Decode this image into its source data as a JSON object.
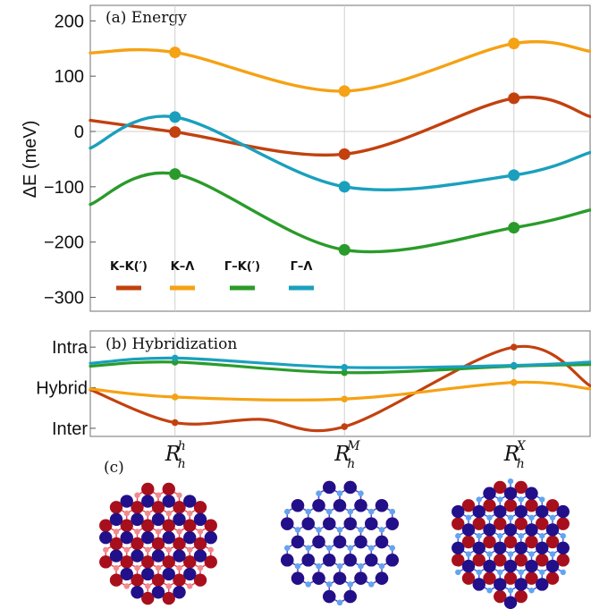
{
  "colors": {
    "K-K'": "#c2410f",
    "K-Lambda": "#f5a214",
    "Gamma-K'": "#2a9b2a",
    "Gamma-Lambda": "#1aa0bd",
    "red_atom": "#a80f1c",
    "blue_atom": "#21108a",
    "red_bond": "#e8414d",
    "blue_bond": "#3b57d9",
    "red_small": "#f08a8f",
    "blue_small": "#62a4f0"
  },
  "stacking_labels": [
    {
      "main": "R",
      "sub": "h",
      "sup": "h"
    },
    {
      "main": "R",
      "sub": "h",
      "sup": "M"
    },
    {
      "main": "R",
      "sub": "h",
      "sup": "X"
    }
  ],
  "panel_c_label": "(c)",
  "chart_data": [
    {
      "type": "line",
      "title": "(a) Energy",
      "ylabel": "ΔE (meV)",
      "ylim": [
        -325,
        228
      ],
      "yticks": [
        "200",
        "100",
        "0",
        "−100",
        "−200",
        "−300"
      ],
      "ytick_values": [
        200,
        100,
        0,
        -100,
        -200,
        -300
      ],
      "xlim": [
        -0.5,
        2.45
      ],
      "x_categories": [
        "R_h^h",
        "R_h^M",
        "R_h^X"
      ],
      "legend": {
        "placement": "lower-left",
        "entries": [
          "K–K(′)",
          "K–Λ",
          "Γ–K(′)",
          "Γ–Λ"
        ]
      },
      "series": [
        {
          "name": "K–K(′)",
          "color_key": "K-K'",
          "x": [
            -0.5,
            0,
            1,
            2,
            2.45
          ],
          "y": [
            20,
            -1,
            -41,
            60,
            27
          ]
        },
        {
          "name": "K–Λ",
          "color_key": "K-Lambda",
          "x": [
            -0.5,
            0,
            1,
            2,
            2.45
          ],
          "y": [
            142,
            143,
            73,
            159,
            145
          ]
        },
        {
          "name": "Γ–K(′)",
          "color_key": "Gamma-K'",
          "x": [
            -0.5,
            0,
            1,
            2,
            2.45
          ],
          "y": [
            -132,
            -77,
            -214,
            -174,
            -142
          ]
        },
        {
          "name": "Γ–Λ",
          "color_key": "Gamma-Lambda",
          "x": [
            -0.5,
            0,
            1,
            2,
            2.45
          ],
          "y": [
            -30,
            26,
            -100,
            -79,
            -38
          ]
        }
      ]
    },
    {
      "type": "line",
      "title": "(b) Hybridization",
      "ylim": [
        -0.2,
        2.4
      ],
      "yticks": [
        "Intra",
        "Hybrid",
        "Inter"
      ],
      "ytick_values": [
        2,
        1,
        0
      ],
      "xlim": [
        -0.5,
        2.45
      ],
      "x_categories": [
        "R_h^h",
        "R_h^M",
        "R_h^X"
      ],
      "series": [
        {
          "name": "",
          "color_key": "K-K'",
          "x": [
            -0.5,
            0,
            0.5,
            1,
            2,
            2.45
          ],
          "y": [
            0.95,
            0.14,
            0.22,
            0.04,
            2.0,
            1.05
          ]
        },
        {
          "name": "",
          "color_key": "K-Lambda",
          "x": [
            -0.5,
            0,
            1,
            2,
            2.45
          ],
          "y": [
            0.97,
            0.77,
            0.72,
            1.13,
            0.97
          ]
        },
        {
          "name": "",
          "color_key": "Gamma-K'",
          "x": [
            -0.5,
            0,
            1,
            2,
            2.45
          ],
          "y": [
            1.53,
            1.63,
            1.37,
            1.53,
            1.57
          ]
        },
        {
          "name": "",
          "color_key": "Gamma-Lambda",
          "x": [
            -0.5,
            0,
            1,
            2,
            2.45
          ],
          "y": [
            1.6,
            1.73,
            1.5,
            1.55,
            1.63
          ]
        }
      ]
    }
  ]
}
